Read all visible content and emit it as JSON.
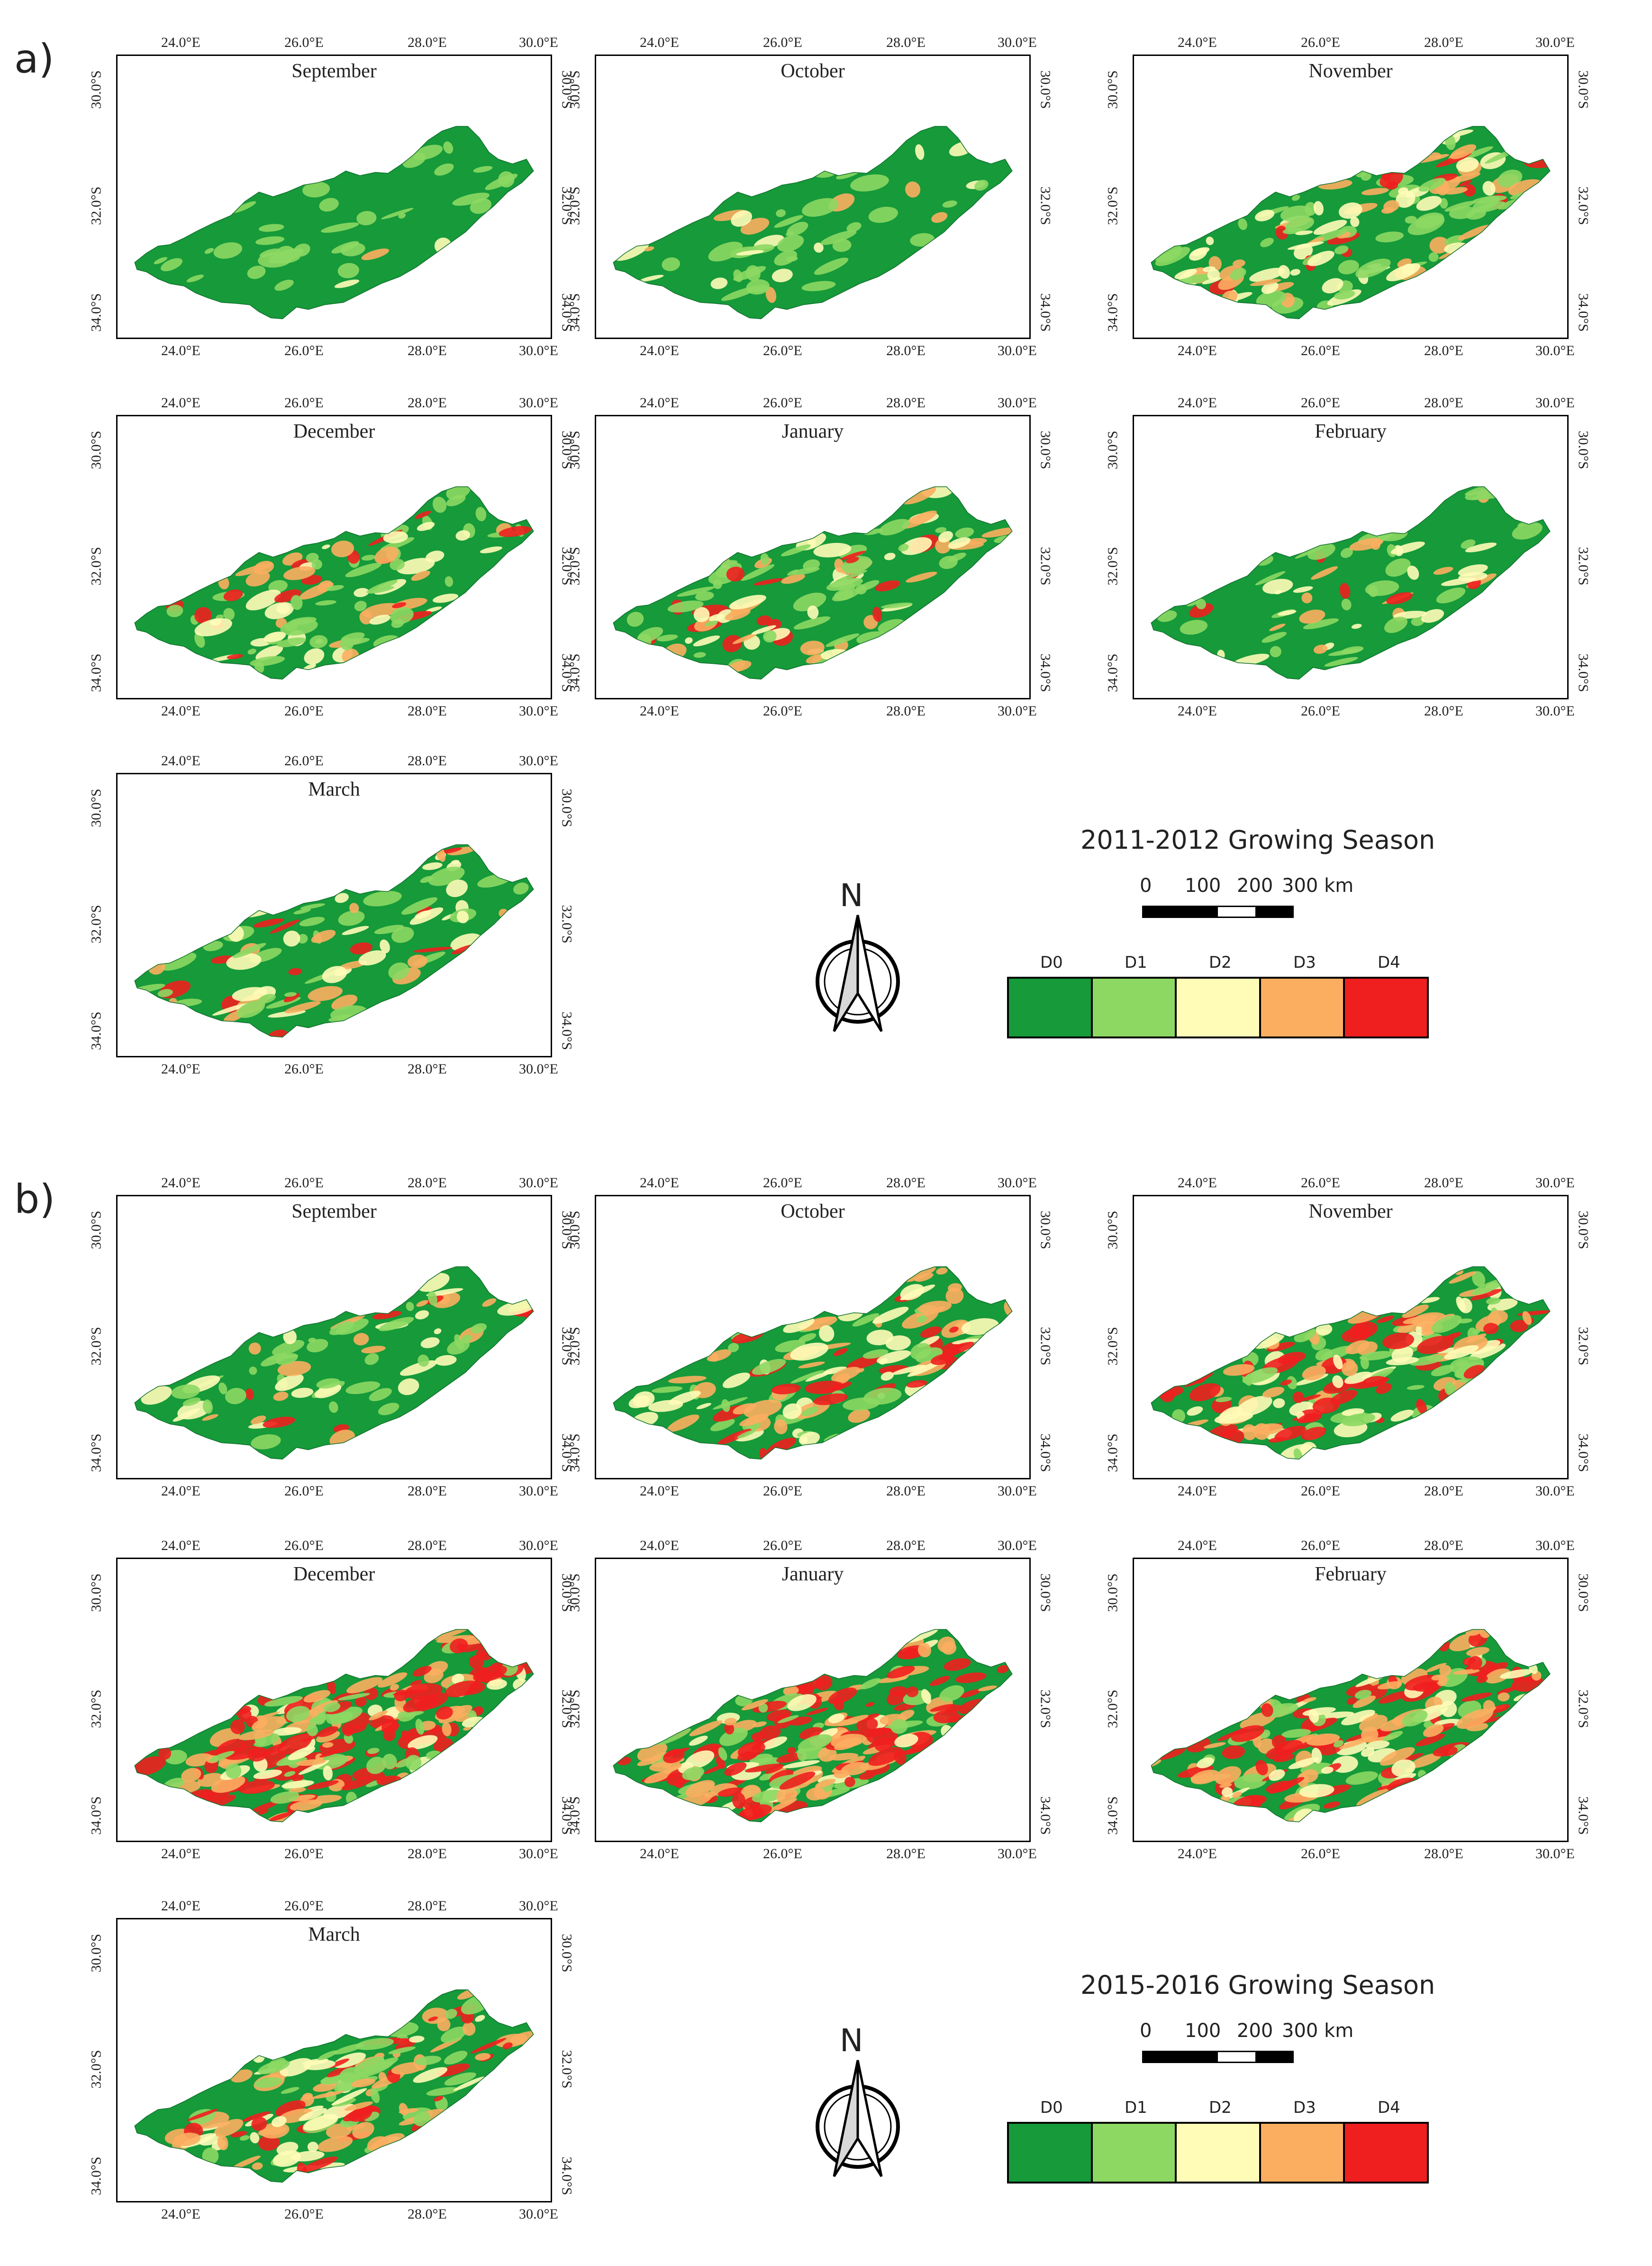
{
  "months": [
    "September",
    "October",
    "November",
    "December",
    "January",
    "February",
    "March"
  ],
  "lon_ticks": [
    "24.0°E",
    "26.0°E",
    "28.0°E",
    "30.0°E"
  ],
  "lat_ticks": [
    "30.0°S",
    "32.0°S",
    "34.0°S"
  ],
  "classes": [
    {
      "code": "D0",
      "color": "#169a3a"
    },
    {
      "code": "D1",
      "color": "#8cd863"
    },
    {
      "code": "D2",
      "color": "#fffcb8"
    },
    {
      "code": "D3",
      "color": "#fcae60"
    },
    {
      "code": "D4",
      "color": "#ef1f1f"
    }
  ],
  "scale": {
    "l0": "0",
    "l100": "100",
    "l200": "200",
    "l300": "300 km"
  },
  "north_label": "N",
  "sections": [
    {
      "label": "a)",
      "season": "2011-2012 Growing Season",
      "drought_share_percent": [
        6,
        6,
        45,
        30,
        30,
        18,
        28
      ],
      "severe_share_percent": [
        1,
        1,
        12,
        8,
        6,
        3,
        8
      ]
    },
    {
      "label": "b)",
      "season": "2015-2016 Growing Season",
      "drought_share_percent": [
        25,
        40,
        60,
        90,
        90,
        75,
        55
      ],
      "severe_share_percent": [
        5,
        15,
        35,
        70,
        70,
        50,
        25
      ]
    }
  ]
}
